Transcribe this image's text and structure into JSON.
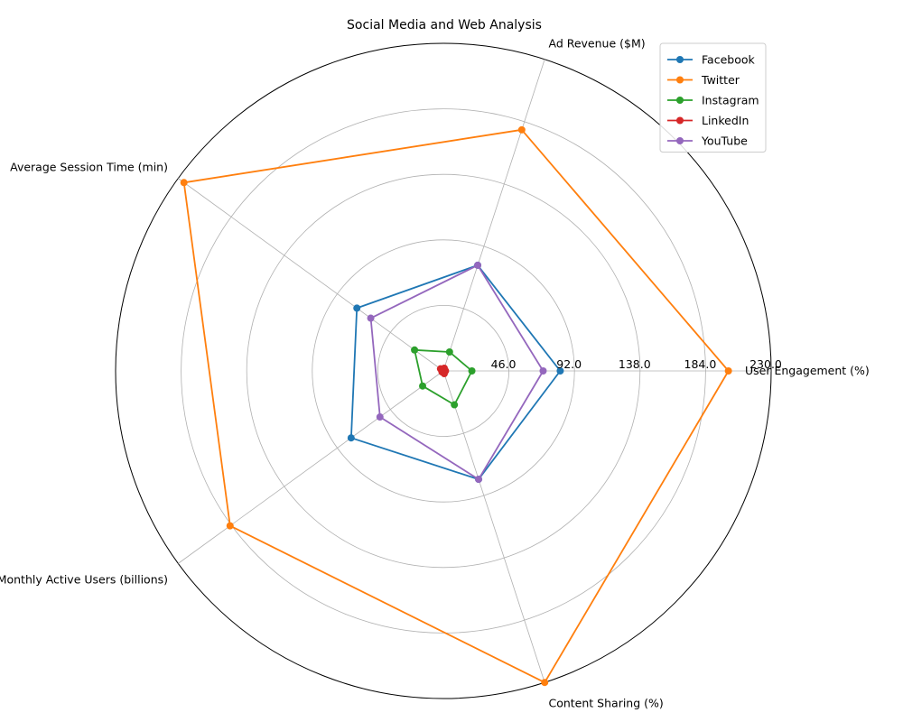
{
  "chart_data": {
    "type": "radar",
    "title": "Social Media and Web Analysis",
    "axes": [
      "User Engagement (%)",
      "Ad Revenue ($M)",
      "Average Session Time (min)",
      "Monthly Active Users (billions)",
      "Content Sharing (%)"
    ],
    "rlim": [
      0,
      230
    ],
    "rticks": [
      46,
      92,
      138,
      184,
      230
    ],
    "rtick_labels": [
      "46.0",
      "92.0",
      "138.0",
      "184.0",
      "230.0"
    ],
    "grid": true,
    "legend_position": "top-right",
    "series": [
      {
        "name": "Facebook",
        "color": "#1f77b4",
        "values": [
          82,
          78,
          75,
          80,
          80
        ]
      },
      {
        "name": "Twitter",
        "color": "#ff7f0e",
        "values": [
          200,
          178,
          225,
          185,
          230
        ]
      },
      {
        "name": "Instagram",
        "color": "#2ca02c",
        "values": [
          20,
          14,
          25,
          18,
          25
        ]
      },
      {
        "name": "LinkedIn",
        "color": "#d62728",
        "values": [
          1.5,
          2,
          2.5,
          1.2,
          2
        ]
      },
      {
        "name": "YouTube",
        "color": "#9467bd",
        "values": [
          70,
          78,
          63,
          55,
          80
        ]
      }
    ]
  }
}
